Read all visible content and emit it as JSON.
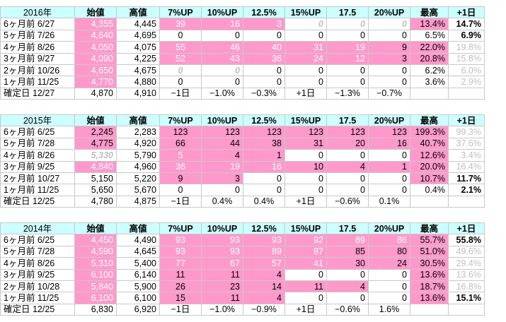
{
  "tables": [
    {
      "header": [
        "2016年",
        "始値",
        "高値",
        "7%UP",
        "10%UP",
        "12.5%",
        "15%UP",
        "17.5",
        "20%UP",
        "最高",
        "+1日"
      ],
      "rows": [
        {
          "cells": [
            "6ヶ月前  6/27",
            "4,355",
            "4,445",
            "39",
            "16",
            "3",
            "0",
            "0",
            "0",
            "13.4%",
            "14.7%"
          ],
          "styles": [
            "",
            "pink lite",
            "",
            "pink lite",
            "pink lite",
            "pink lite",
            "ital",
            "ital",
            "ital",
            "pink",
            "bold"
          ]
        },
        {
          "cells": [
            "5ヶ月前  7/26",
            "4,640",
            "4,695",
            "0",
            "0",
            "0",
            "0",
            "0",
            "0",
            "6.5%",
            "6.9%"
          ],
          "styles": [
            "",
            "pink lite",
            "",
            "",
            "",
            "",
            "",
            "",
            "",
            "",
            "bold"
          ]
        },
        {
          "cells": [
            "4ヶ月前  8/26",
            "4,050",
            "4,075",
            "55",
            "46",
            "40",
            "31",
            "19",
            "9",
            "22.0%",
            "19.8%"
          ],
          "styles": [
            "",
            "pink lite",
            "",
            "pink lite",
            "pink lite",
            "pink lite",
            "pink lite",
            "pink lite",
            "pink",
            "pink",
            "gray"
          ]
        },
        {
          "cells": [
            "3ヶ月前  9/27",
            "4,090",
            "4,225",
            "52",
            "43",
            "36",
            "24",
            "12",
            "3",
            "20.8%",
            "15.8%"
          ],
          "styles": [
            "",
            "pink lite",
            "",
            "pink lite",
            "pink lite",
            "pink lite",
            "pink lite",
            "pink lite",
            "pink",
            "pink",
            "gray"
          ]
        },
        {
          "cells": [
            "2ヶ月前  10/26",
            "4,650",
            "4,675",
            "0",
            "0",
            "0",
            "0",
            "0",
            "0",
            "6.2%",
            "6.0%"
          ],
          "styles": [
            "",
            "pink lite",
            "",
            "ital",
            "ital",
            "",
            "",
            "",
            "",
            "",
            "gray"
          ]
        },
        {
          "cells": [
            "1ヶ月前  11/25",
            "4,770",
            "4,880",
            "0",
            "0",
            "0",
            "0",
            "0",
            "0",
            "3.6%",
            "2.9%"
          ],
          "styles": [
            "",
            "pink lite",
            "",
            "",
            "",
            "",
            "",
            "",
            "",
            "",
            "gray"
          ]
        },
        {
          "cells": [
            "確定日  12/27",
            "4,870",
            "4,910",
            "−1日",
            "−1.0%",
            "−0.3%",
            "+1日",
            "−1.3%",
            "−0.7%",
            "",
            ""
          ],
          "styles": [
            "",
            "",
            "",
            "box",
            "box",
            "box",
            "box",
            "box",
            "box",
            "",
            ""
          ]
        }
      ]
    },
    {
      "header": [
        "2015年",
        "始値",
        "高値",
        "7%UP",
        "10%UP",
        "12.5%",
        "15%UP",
        "17.5",
        "20%UP",
        "最高",
        "+1日"
      ],
      "rows": [
        {
          "cells": [
            "6ヶ月前  6/25",
            "2,245",
            "2,283",
            "123",
            "123",
            "123",
            "123",
            "123",
            "123",
            "199.3%",
            "99.3%"
          ],
          "styles": [
            "",
            "pink",
            "",
            "pink",
            "pink",
            "pink",
            "pink",
            "pink",
            "pink",
            "pink",
            "gray"
          ]
        },
        {
          "cells": [
            "5ヶ月前  7/28",
            "4,775",
            "4,920",
            "66",
            "44",
            "38",
            "31",
            "20",
            "16",
            "40.7%",
            "37.6%"
          ],
          "styles": [
            "",
            "pink",
            "",
            "pink",
            "pink",
            "pink",
            "pink",
            "pink",
            "pink",
            "pink",
            "gray"
          ]
        },
        {
          "cells": [
            "4ヶ月前  8/26",
            "5,330",
            "5,790",
            "5",
            "4",
            "1",
            "0",
            "0",
            "0",
            "12.6%",
            "3.4%"
          ],
          "styles": [
            "",
            "ital",
            "",
            "pink lite",
            "pink",
            "pink",
            "",
            "",
            "",
            "pink",
            "gray"
          ]
        },
        {
          "cells": [
            "3ヶ月前  9/25",
            "4,840",
            "4,960",
            "36",
            "19",
            "16",
            "10",
            "4",
            "1",
            "20.0%",
            "16.4%"
          ],
          "styles": [
            "",
            "pink lite",
            "",
            "pink lite",
            "pink lite",
            "pink lite",
            "pink",
            "pink",
            "pink",
            "pink",
            "gray"
          ]
        },
        {
          "cells": [
            "2ヶ月前  10/27",
            "5,150",
            "5,220",
            "9",
            "3",
            "0",
            "0",
            "0",
            "0",
            "10.7%",
            "11.7%"
          ],
          "styles": [
            "",
            "",
            "",
            "pink",
            "pink",
            "",
            "",
            "",
            "",
            "pink",
            "bold"
          ]
        },
        {
          "cells": [
            "1ヶ月前  11/25",
            "5,650",
            "5,670",
            "0",
            "0",
            "0",
            "0",
            "0",
            "0",
            "0.4%",
            "2.1%"
          ],
          "styles": [
            "",
            "",
            "",
            "",
            "",
            "",
            "",
            "",
            "",
            "",
            "bold"
          ]
        },
        {
          "cells": [
            "確定日  12/25",
            "4,780",
            "4,875",
            "−1日",
            "0.4%",
            "0.4%",
            "+1日",
            "−0.6%",
            "0.1%",
            "",
            ""
          ],
          "styles": [
            "",
            "",
            "",
            "box",
            "box",
            "box",
            "box",
            "box",
            "box",
            "",
            ""
          ]
        }
      ]
    },
    {
      "header": [
        "2014年",
        "始値",
        "高値",
        "7%UP",
        "10%UP",
        "12.5%",
        "15%UP",
        "17.5",
        "20%UP",
        "最高",
        "+1日"
      ],
      "rows": [
        {
          "cells": [
            "6ヶ月前  6/25",
            "4,450",
            "4,490",
            "93",
            "93",
            "93",
            "92",
            "89",
            "86",
            "55.7%",
            "55.8%"
          ],
          "styles": [
            "",
            "pink lite",
            "",
            "pink lite",
            "pink lite",
            "pink lite",
            "pink lite",
            "pink lite",
            "pink lite",
            "pink",
            "bold"
          ]
        },
        {
          "cells": [
            "5ヶ月前  7/28",
            "4,590",
            "4,645",
            "93",
            "93",
            "89",
            "87",
            "85",
            "80",
            "51.0%",
            "49.6%"
          ],
          "styles": [
            "",
            "pink lite",
            "",
            "pink lite",
            "pink lite",
            "pink lite",
            "pink lite",
            "pink",
            "pink",
            "pink",
            "gray"
          ]
        },
        {
          "cells": [
            "4ヶ月前  8/26",
            "5,310",
            "5,400",
            "77",
            "67",
            "57",
            "41",
            "30",
            "24",
            "30.5%",
            "29.4%"
          ],
          "styles": [
            "",
            "pink lite",
            "",
            "pink lite",
            "pink lite",
            "pink lite",
            "pink lite",
            "pink",
            "pink",
            "pink",
            "gray"
          ]
        },
        {
          "cells": [
            "3ヶ月前  9/25",
            "6,100",
            "6,140",
            "11",
            "11",
            "4",
            "0",
            "0",
            "0",
            "13.6%",
            "13.6%"
          ],
          "styles": [
            "",
            "pink lite",
            "",
            "pink",
            "pink",
            "pink",
            "",
            "",
            "",
            "pink",
            "gray"
          ]
        },
        {
          "cells": [
            "2ヶ月前  10/28",
            "5,840",
            "5,900",
            "26",
            "23",
            "14",
            "11",
            "4",
            "0",
            "18.7%",
            "16.8%"
          ],
          "styles": [
            "",
            "pink lite",
            "",
            "pink",
            "pink",
            "pink",
            "pink",
            "pink",
            "",
            "pink",
            "gray"
          ]
        },
        {
          "cells": [
            "1ヶ月前  11/25",
            "6,100",
            "6,100",
            "15",
            "11",
            "4",
            "0",
            "0",
            "0",
            "13.6%",
            "15.1%"
          ],
          "styles": [
            "",
            "pink lite",
            "",
            "pink",
            "pink",
            "pink",
            "",
            "",
            "",
            "pink",
            "bold"
          ]
        },
        {
          "cells": [
            "確定日  12/25",
            "6,830",
            "6,920",
            "−1日",
            "−1.0%",
            "−0.9%",
            "+1日",
            "−0.6%",
            "1.6%",
            "",
            ""
          ],
          "styles": [
            "",
            "",
            "",
            "box",
            "box",
            "box",
            "box",
            "box",
            "box",
            "",
            ""
          ]
        }
      ]
    }
  ],
  "colors": {
    "header_bg": "#ccffff",
    "highlight": "#ff99cc",
    "faint_text": "#c0c0c0"
  }
}
